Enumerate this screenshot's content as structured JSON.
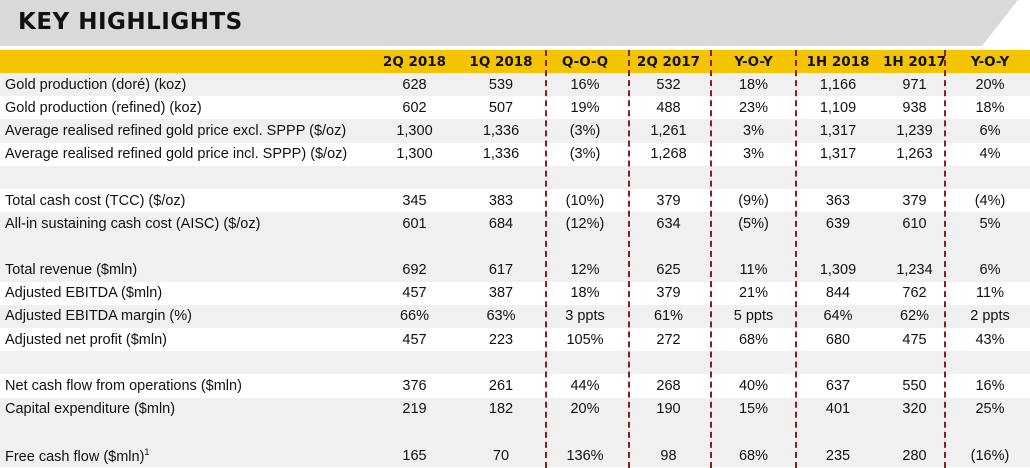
{
  "title": "KEY HIGHLIGHTS",
  "colors": {
    "accent": "#F5C400",
    "title_bg": "#D9D9D9",
    "divider": "#8B1E1E",
    "shade": "#F0F0F0"
  },
  "columns": [
    "2Q 2018",
    "1Q 2018",
    "Q-O-Q",
    "2Q 2017",
    "Y-O-Y",
    "1H 2018",
    "1H 2017",
    "Y-O-Y"
  ],
  "rows": [
    {
      "label": "Gold production (doré) (koz)",
      "values": [
        "628",
        "539",
        "16%",
        "532",
        "18%",
        "1,166",
        "971",
        "20%"
      ]
    },
    {
      "label": "Gold production (refined) (koz)",
      "values": [
        "602",
        "507",
        "19%",
        "488",
        "23%",
        "1,109",
        "938",
        "18%"
      ]
    },
    {
      "label": "Average realised refined gold price excl. SPPP ($/oz)",
      "values": [
        "1,300",
        "1,336",
        "(3%)",
        "1,261",
        "3%",
        "1,317",
        "1,239",
        "6%"
      ]
    },
    {
      "label": "Average realised refined gold price incl. SPPP) ($/oz)",
      "values": [
        "1,300",
        "1,336",
        "(3%)",
        "1,268",
        "3%",
        "1,317",
        "1,263",
        "4%"
      ]
    },
    {
      "label": "",
      "values": [
        "",
        "",
        "",
        "",
        "",
        "",
        "",
        ""
      ]
    },
    {
      "label": "Total cash cost (TCC) ($/oz)",
      "values": [
        "345",
        "383",
        "(10%)",
        "379",
        "(9%)",
        "363",
        "379",
        "(4%)"
      ]
    },
    {
      "label": "All-in sustaining cash cost (AISC) ($/oz)",
      "values": [
        "601",
        "684",
        "(12%)",
        "634",
        "(5%)",
        "639",
        "610",
        "5%"
      ]
    },
    {
      "label": "",
      "values": [
        "",
        "",
        "",
        "",
        "",
        "",
        "",
        ""
      ]
    },
    {
      "label": "Total revenue ($mln)",
      "values": [
        "692",
        "617",
        "12%",
        "625",
        "11%",
        "1,309",
        "1,234",
        "6%"
      ]
    },
    {
      "label": "Adjusted EBITDA ($mln)",
      "values": [
        "457",
        "387",
        "18%",
        "379",
        "21%",
        "844",
        "762",
        "11%"
      ]
    },
    {
      "label": "Adjusted EBITDA margin (%)",
      "values": [
        "66%",
        "63%",
        "3 ppts",
        "61%",
        "5 ppts",
        "64%",
        "62%",
        "2 ppts"
      ]
    },
    {
      "label": "Adjusted net profit ($mln)",
      "values": [
        "457",
        "223",
        "105%",
        "272",
        "68%",
        "680",
        "475",
        "43%"
      ]
    },
    {
      "label": "",
      "values": [
        "",
        "",
        "",
        "",
        "",
        "",
        "",
        ""
      ]
    },
    {
      "label": "Net cash flow from operations ($mln)",
      "values": [
        "376",
        "261",
        "44%",
        "268",
        "40%",
        "637",
        "550",
        "16%"
      ]
    },
    {
      "label": "Capital expenditure ($mln)",
      "values": [
        "219",
        "182",
        "20%",
        "190",
        "15%",
        "401",
        "320",
        "25%"
      ]
    },
    {
      "label": "",
      "values": [
        "",
        "",
        "",
        "",
        "",
        "",
        "",
        ""
      ]
    },
    {
      "label": "Free cash flow ($mln)",
      "footnote": "1",
      "values": [
        "165",
        "70",
        "136%",
        "98",
        "68%",
        "235",
        "280",
        "(16%)"
      ]
    }
  ]
}
